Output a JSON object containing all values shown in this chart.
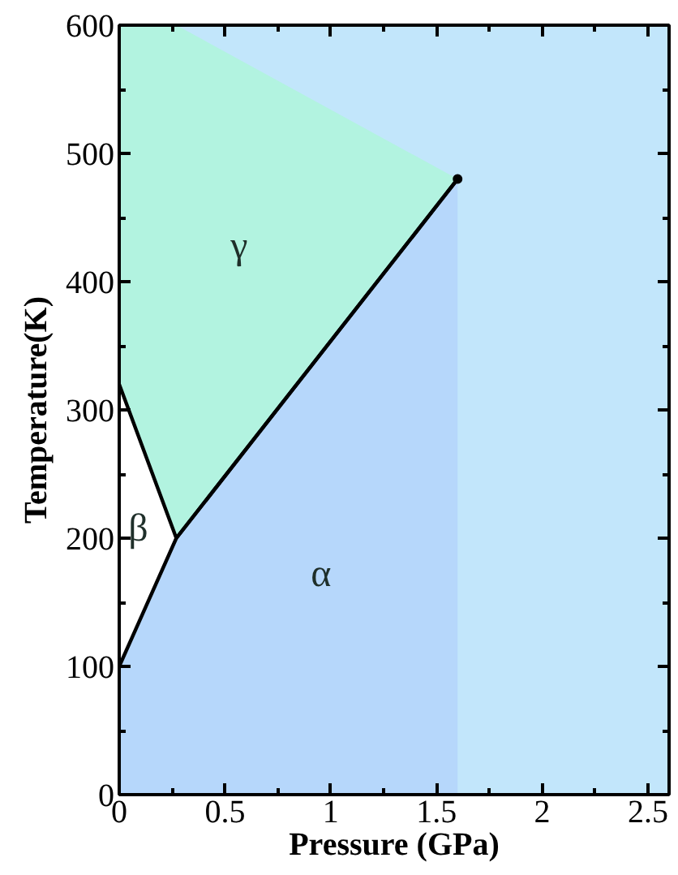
{
  "chart_data": {
    "type": "area",
    "stacked": true,
    "xlabel": "Pressure (GPa)",
    "ylabel": "Temperature(K)",
    "xlim": [
      0,
      2.6
    ],
    "ylim": [
      0,
      600
    ],
    "xticks": [
      0,
      {
        "value": 0.25,
        "label": null
      },
      0.5,
      {
        "value": 0.75,
        "label": null
      },
      1,
      {
        "value": 1.25,
        "label": null
      },
      1.5,
      {
        "value": 1.75,
        "label": null
      },
      2,
      {
        "value": 2.25,
        "label": null
      },
      2.5
    ],
    "yticks": [
      0,
      {
        "value": 50,
        "label": null
      },
      100,
      {
        "value": 150,
        "label": null
      },
      200,
      {
        "value": 250,
        "label": null
      },
      300,
      {
        "value": 350,
        "label": null
      },
      400,
      {
        "value": 450,
        "label": null
      },
      500,
      {
        "value": 550,
        "label": null
      },
      600
    ],
    "grid": false,
    "x": [
      0,
      0.27,
      1.6
    ],
    "series": [
      {
        "name": "α",
        "color": "#b6d7fb",
        "line_style": "solid",
        "values": [
          100,
          200,
          480
        ]
      },
      {
        "name": "β",
        "color": "#ffffff",
        "line_style": "solid",
        "values": [
          220,
          0,
          0
        ]
      },
      {
        "name": "γ",
        "color": "#b2f3e0",
        "values": [
          280,
          400,
          0
        ]
      },
      {
        "type": "scatter",
        "color": "#000000",
        "marker": "circle",
        "x": [
          1.6
        ],
        "values": [
          480
        ]
      }
    ]
  }
}
